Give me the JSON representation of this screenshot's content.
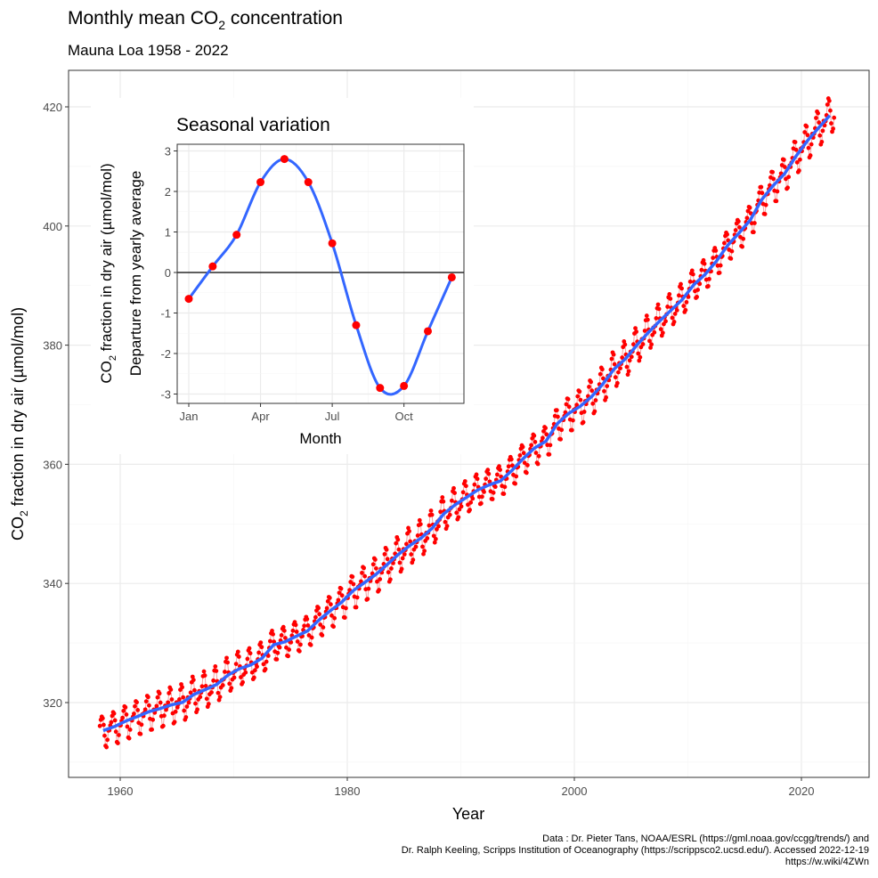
{
  "chart_data": [
    {
      "type": "scatter",
      "title": "Monthly mean CO",
      "title_sub": "2",
      "title_end": " concentration",
      "subtitle": "Mauna Loa 1958 - 2022",
      "xlabel": "Year",
      "ylabel_pre": "CO",
      "ylabel_sub": "2",
      "ylabel_post": " fraction in dry air (µmol/mol)",
      "xlim": [
        1956.5,
        2026
      ],
      "ylim": [
        307,
        425.5
      ],
      "xticks": [
        1960,
        1980,
        2000,
        2020
      ],
      "yticks": [
        320,
        340,
        360,
        380,
        400,
        420
      ],
      "grid": true,
      "colors": {
        "points": "#ff0000",
        "trend": "#3366ff",
        "connector": "#f4a0a0"
      },
      "start_month": 3,
      "end_month": 11,
      "annual_mean": {
        "years": [
          1958,
          1959,
          1960,
          1961,
          1962,
          1963,
          1964,
          1965,
          1966,
          1967,
          1968,
          1969,
          1970,
          1971,
          1972,
          1973,
          1974,
          1975,
          1976,
          1977,
          1978,
          1979,
          1980,
          1981,
          1982,
          1983,
          1984,
          1985,
          1986,
          1987,
          1988,
          1989,
          1990,
          1991,
          1992,
          1993,
          1994,
          1995,
          1996,
          1997,
          1998,
          1999,
          2000,
          2001,
          2002,
          2003,
          2004,
          2005,
          2006,
          2007,
          2008,
          2009,
          2010,
          2011,
          2012,
          2013,
          2014,
          2015,
          2016,
          2017,
          2018,
          2019,
          2020,
          2021,
          2022
        ],
        "values": [
          315.3,
          315.98,
          316.91,
          317.64,
          318.45,
          318.99,
          319.62,
          320.04,
          321.37,
          322.18,
          323.05,
          324.62,
          325.68,
          326.32,
          327.46,
          329.68,
          330.19,
          331.13,
          332.03,
          333.84,
          335.41,
          336.84,
          338.76,
          340.12,
          341.48,
          343.15,
          344.87,
          346.35,
          347.61,
          349.31,
          351.69,
          353.2,
          354.45,
          355.7,
          356.54,
          357.21,
          358.96,
          360.97,
          362.74,
          363.88,
          366.84,
          368.54,
          369.71,
          371.32,
          373.45,
          375.98,
          377.7,
          379.98,
          382.09,
          384.02,
          385.83,
          387.64,
          390.1,
          391.85,
          394.06,
          396.74,
          398.81,
          401.01,
          404.41,
          406.76,
          408.72,
          411.66,
          414.24,
          416.45,
          418.56
        ]
      },
      "footnote": [
        "Data : Dr. Pieter Tans, NOAA/ESRL (https://gml.noaa.gov/ccgg/trends/) and",
        "Dr. Ralph Keeling, Scripps Institution of Oceanography (https://scrippsco2.ucsd.edu/). Accessed  2022-12-19",
        "https://w.wiki/4ZWn"
      ]
    },
    {
      "type": "line",
      "title": "Seasonal variation",
      "xlabel": "Month",
      "ylabel1_pre": "CO",
      "ylabel1_sub": "2",
      "ylabel1_post": " fraction in dry air (µmol/mol)",
      "ylabel2": "Departure from yearly average",
      "xticks": [
        "Jan",
        "Apr",
        "Jul",
        "Oct"
      ],
      "yticks": [
        -3,
        -2,
        -1,
        0,
        1,
        2,
        3
      ],
      "ylim": [
        -3.2,
        3.2
      ],
      "months": [
        1,
        2,
        3,
        4,
        5,
        6,
        7,
        8,
        9,
        10,
        11,
        12
      ],
      "values": [
        -0.65,
        0.15,
        0.93,
        2.23,
        2.8,
        2.23,
        0.72,
        -1.3,
        -2.85,
        -2.8,
        -1.45,
        -0.12
      ],
      "colors": {
        "points": "#ff0000",
        "line": "#3366ff"
      }
    }
  ]
}
